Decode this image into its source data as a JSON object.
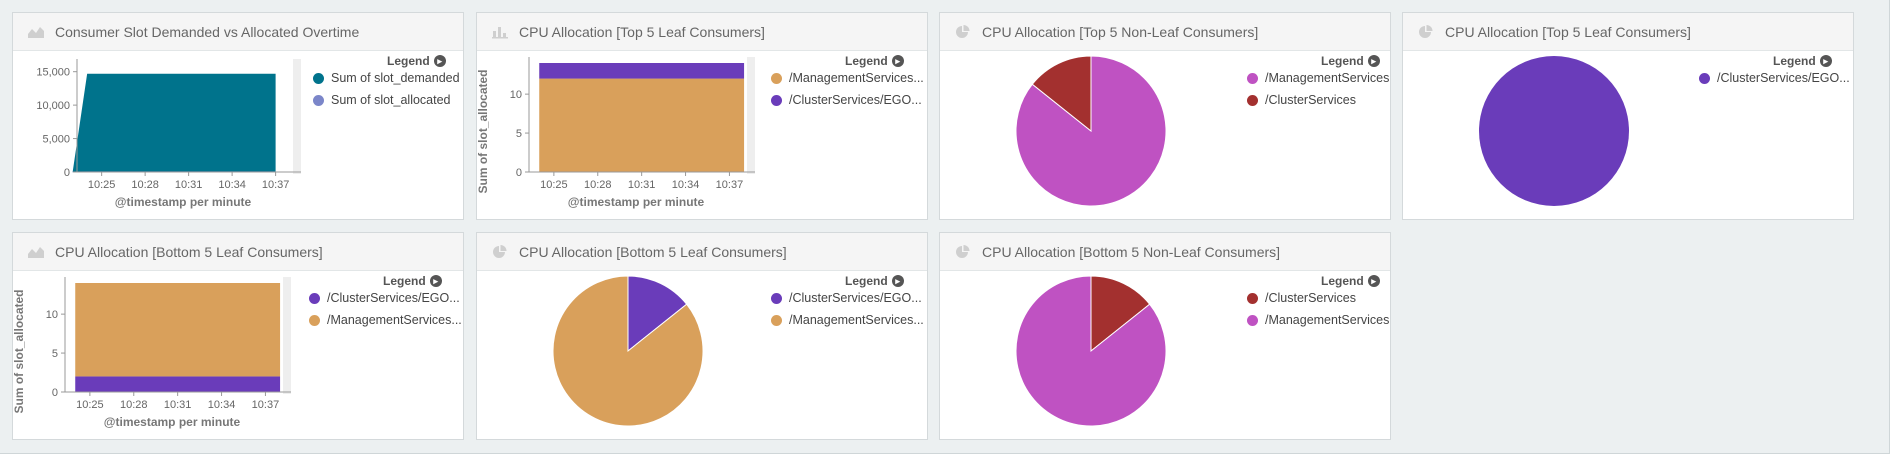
{
  "colors": {
    "teal": "#00738c",
    "lavender": "#7b86c9",
    "orange": "#d9a05b",
    "purple": "#6a3cba",
    "magenta": "#bf52c2",
    "darkred": "#a3302f"
  },
  "legend_label": "Legend",
  "panels": [
    {
      "title": "Consumer Slot Demanded vs Allocated Overtime",
      "icon": "area-chart-icon",
      "legend": [
        "Sum of slot_demanded",
        "Sum of slot_allocated"
      ],
      "xlabel": "@timestamp per minute",
      "x_ticks": [
        "10:25",
        "10:28",
        "10:31",
        "10:34",
        "10:37"
      ],
      "y_ticks": [
        "0",
        "5,000",
        "10,000",
        "15,000"
      ]
    },
    {
      "title": "CPU Allocation [Top 5 Leaf Consumers]",
      "icon": "bar-chart-icon",
      "legend": [
        "/ManagementServices...",
        "/ClusterServices/EGO..."
      ],
      "xlabel": "@timestamp per minute",
      "ylabel": "Sum of slot_allocated",
      "x_ticks": [
        "10:25",
        "10:28",
        "10:31",
        "10:34",
        "10:37"
      ],
      "y_ticks": [
        "0",
        "5",
        "10"
      ]
    },
    {
      "title": "CPU Allocation [Top 5 Non-Leaf Consumers]",
      "icon": "pie-chart-icon",
      "legend": [
        "/ManagementServices",
        "/ClusterServices"
      ]
    },
    {
      "title": "CPU Allocation [Top 5 Leaf Consumers]",
      "icon": "pie-chart-icon",
      "legend": [
        "/ClusterServices/EGO..."
      ]
    },
    {
      "title": "CPU Allocation [Bottom 5 Leaf Consumers]",
      "icon": "area-chart-icon",
      "legend": [
        "/ClusterServices/EGO...",
        "/ManagementServices..."
      ],
      "xlabel": "@timestamp per minute",
      "ylabel": "Sum of slot_allocated",
      "x_ticks": [
        "10:25",
        "10:28",
        "10:31",
        "10:34",
        "10:37"
      ],
      "y_ticks": [
        "0",
        "5",
        "10"
      ]
    },
    {
      "title": "CPU Allocation [Bottom 5 Leaf Consumers]",
      "icon": "pie-chart-icon",
      "legend": [
        "/ClusterServices/EGO...",
        "/ManagementServices..."
      ]
    },
    {
      "title": "CPU Allocation [Bottom 5 Non-Leaf Consumers]",
      "icon": "pie-chart-icon",
      "legend": [
        "/ClusterServices",
        "/ManagementServices"
      ]
    }
  ],
  "chart_data": [
    {
      "type": "area",
      "title": "Consumer Slot Demanded vs Allocated Overtime",
      "xlabel": "@timestamp per minute",
      "x": [
        "10:23",
        "10:24",
        "10:37"
      ],
      "ylim": [
        0,
        16000
      ],
      "series": [
        {
          "name": "Sum of slot_demanded",
          "values": [
            0,
            14700,
            14700
          ]
        },
        {
          "name": "Sum of slot_allocated",
          "values": [
            0,
            13,
            13
          ]
        }
      ]
    },
    {
      "type": "area",
      "title": "CPU Allocation [Top 5 Leaf Consumers]",
      "xlabel": "@timestamp per minute",
      "ylabel": "Sum of slot_allocated",
      "x": [
        "10:24",
        "10:38"
      ],
      "ylim": [
        0,
        14
      ],
      "stacked": true,
      "series": [
        {
          "name": "/ManagementServices...",
          "values": [
            12,
            12
          ]
        },
        {
          "name": "/ClusterServices/EGO...",
          "values": [
            2,
            2
          ]
        }
      ]
    },
    {
      "type": "pie",
      "title": "CPU Allocation [Top 5 Non-Leaf Consumers]",
      "categories": [
        "/ManagementServices",
        "/ClusterServices"
      ],
      "values": [
        12,
        2
      ]
    },
    {
      "type": "pie",
      "title": "CPU Allocation [Top 5 Leaf Consumers]",
      "categories": [
        "/ClusterServices/EGO..."
      ],
      "values": [
        2
      ]
    },
    {
      "type": "area",
      "title": "CPU Allocation [Bottom 5 Leaf Consumers]",
      "xlabel": "@timestamp per minute",
      "ylabel": "Sum of slot_allocated",
      "x": [
        "10:24",
        "10:38"
      ],
      "ylim": [
        0,
        14
      ],
      "stacked": true,
      "series": [
        {
          "name": "/ClusterServices/EGO...",
          "values": [
            2,
            2
          ]
        },
        {
          "name": "/ManagementServices...",
          "values": [
            12,
            12
          ]
        }
      ]
    },
    {
      "type": "pie",
      "title": "CPU Allocation [Bottom 5 Leaf Consumers]",
      "categories": [
        "/ClusterServices/EGO...",
        "/ManagementServices..."
      ],
      "values": [
        2,
        12
      ]
    },
    {
      "type": "pie",
      "title": "CPU Allocation [Bottom 5 Non-Leaf Consumers]",
      "categories": [
        "/ClusterServices",
        "/ManagementServices"
      ],
      "values": [
        2,
        12
      ]
    }
  ]
}
